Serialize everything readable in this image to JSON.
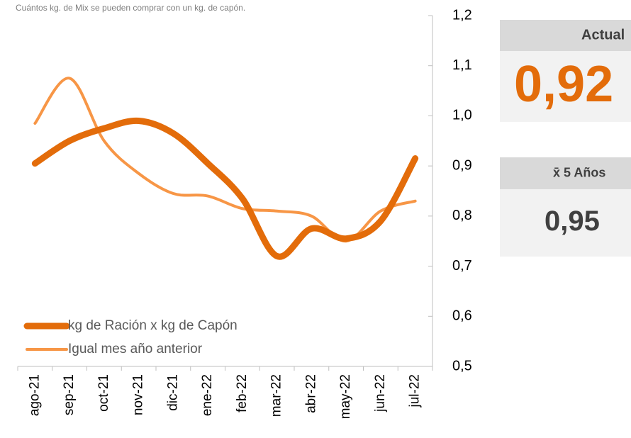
{
  "chart_data": {
    "type": "line",
    "subtitle": "Cuántos kg. de Mix se pueden comprar con un kg. de capón.",
    "categories": [
      "ago-21",
      "sep-21",
      "oct-21",
      "nov-21",
      "dic-21",
      "ene-22",
      "feb-22",
      "mar-22",
      "abr-22",
      "may-22",
      "jun-22",
      "jul-22"
    ],
    "series": [
      {
        "name": "kg de Ración x kg de Capón",
        "color": "#e36c0a",
        "width": 9,
        "values": [
          0.905,
          0.95,
          0.975,
          0.99,
          0.965,
          0.905,
          0.835,
          0.72,
          0.775,
          0.755,
          0.79,
          0.915
        ]
      },
      {
        "name": "Igual mes año anterior",
        "color": "#f79646",
        "width": 4,
        "values": [
          0.985,
          1.075,
          0.95,
          0.885,
          0.845,
          0.84,
          0.815,
          0.81,
          0.8,
          0.75,
          0.81,
          0.83
        ]
      }
    ],
    "ylim": [
      0.5,
      1.2
    ],
    "yticks": [
      {
        "value": 0.5,
        "label": "0,5"
      },
      {
        "value": 0.6,
        "label": "0,6"
      },
      {
        "value": 0.7,
        "label": "0,7"
      },
      {
        "value": 0.8,
        "label": "0,8"
      },
      {
        "value": 0.9,
        "label": "0,9"
      },
      {
        "value": 1.0,
        "label": "1,0"
      },
      {
        "value": 1.1,
        "label": "1,1"
      },
      {
        "value": 1.2,
        "label": "1,2"
      }
    ],
    "legend": "lower-left"
  },
  "panels": [
    {
      "title": "Actual",
      "value": "0,92",
      "color": "#e36c0a"
    },
    {
      "title": "x̄ 5 Años",
      "value": "0,95",
      "color": "#404040"
    }
  ]
}
